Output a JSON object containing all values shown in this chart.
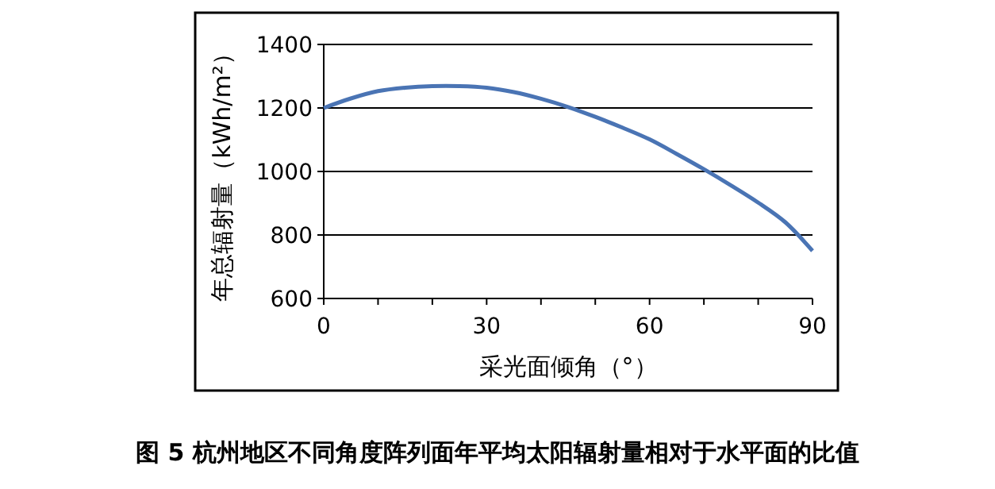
{
  "chart_data": {
    "type": "line",
    "title": "图 5  杭州地区不同角度阵列面年平均太阳辐射量相对于水平面的比值",
    "xlabel": "采光面倾角（°）",
    "ylabel": "年总辐射量（kWh/m²）",
    "x": [
      0,
      5,
      10,
      15,
      20,
      25,
      30,
      35,
      40,
      45,
      50,
      55,
      60,
      65,
      70,
      75,
      80,
      85,
      90
    ],
    "series": [
      {
        "color": "#4a74b4",
        "values": [
          1200,
          1230,
          1253,
          1264,
          1269,
          1269,
          1264,
          1250,
          1229,
          1203,
          1172,
          1138,
          1101,
          1055,
          1007,
          956,
          902,
          840,
          750
        ]
      }
    ],
    "xlim": [
      0,
      90
    ],
    "xticks": [
      0,
      {
        "value": 10,
        "label": null
      },
      {
        "value": 20,
        "label": null
      },
      30,
      {
        "value": 40,
        "label": null
      },
      {
        "value": 50,
        "label": null
      },
      60,
      {
        "value": 70,
        "label": null
      },
      {
        "value": 80,
        "label": null
      },
      90
    ],
    "ylim": [
      600,
      1400
    ],
    "yticks": [
      600,
      800,
      1000,
      1200,
      1400
    ],
    "grid": "y",
    "marker": "none",
    "line_style": "solid"
  }
}
